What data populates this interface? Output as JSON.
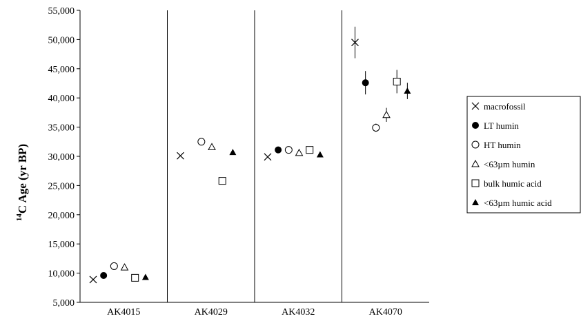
{
  "chart_data": {
    "type": "scatter",
    "ylabel_sup": "14",
    "ylabel_main": "C Age (yr BP)",
    "ylim": [
      5000,
      55000
    ],
    "yticks": [
      5000,
      10000,
      15000,
      20000,
      25000,
      30000,
      35000,
      40000,
      45000,
      50000,
      55000
    ],
    "ytick_labels": [
      "5,000",
      "10,000",
      "15,000",
      "20,000",
      "25,000",
      "30,000",
      "35,000",
      "40,000",
      "45,000",
      "50,000",
      "55,000"
    ],
    "categories": [
      "AK4015",
      "AK4029",
      "AK4032",
      "AK4070"
    ],
    "grid": false,
    "legend_position": "right",
    "series": [
      {
        "name": "macrofossil",
        "marker": "cross",
        "values": [
          8900,
          30100,
          29900,
          49500
        ],
        "err": [
          0,
          0,
          0,
          2700
        ]
      },
      {
        "name": "LT humin",
        "marker": "filled-circle",
        "values": [
          9600,
          null,
          31100,
          42600
        ],
        "err": [
          0,
          0,
          0,
          2000
        ]
      },
      {
        "name": "HT humin",
        "marker": "open-circle",
        "values": [
          11200,
          32500,
          31100,
          34900
        ],
        "err": [
          0,
          0,
          0,
          700
        ]
      },
      {
        "name": "<63µm humin",
        "marker": "open-triangle",
        "values": [
          11000,
          31600,
          30600,
          37100
        ],
        "err": [
          0,
          0,
          0,
          1200
        ]
      },
      {
        "name": "bulk humic acid",
        "marker": "open-square",
        "values": [
          9200,
          25800,
          31100,
          42800
        ],
        "err": [
          0,
          0,
          0,
          2000
        ]
      },
      {
        "name": "<63µm humic acid",
        "marker": "filled-triangle",
        "values": [
          9300,
          30700,
          30300,
          41200
        ],
        "err": [
          0,
          0,
          0,
          1400
        ]
      }
    ]
  }
}
